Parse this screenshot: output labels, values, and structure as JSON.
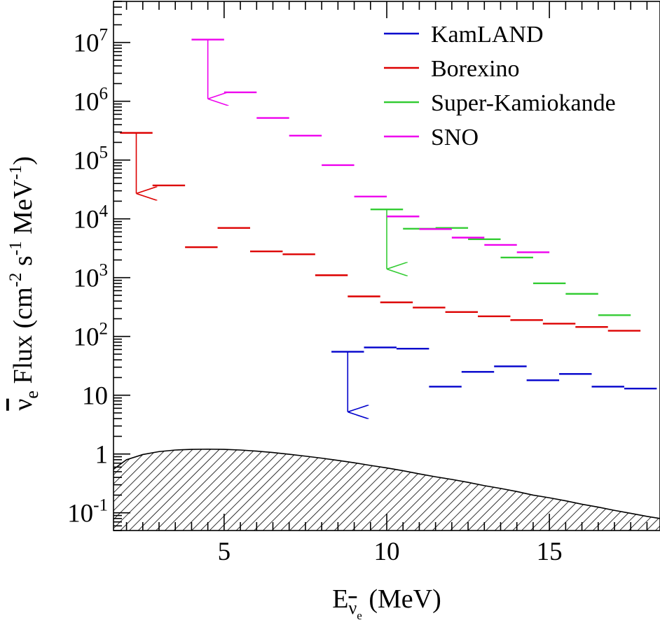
{
  "chart_data": {
    "type": "step",
    "xlabel": {
      "base": "E",
      "sub_nu": "ν",
      "sub_e": "e",
      "unit": "(MeV)"
    },
    "ylabel": {
      "nu": "ν",
      "sub": "e",
      "text1": "Flux (cm",
      "exp1": "-2",
      "text2": " s",
      "exp2": "-1",
      "text3": " MeV",
      "exp3": "-1",
      "close": ")"
    },
    "xlim": [
      1.6,
      18.4
    ],
    "ylim": [
      0.05,
      50000000
    ],
    "yscale": "log",
    "x_ticks": [
      5,
      10,
      15
    ],
    "x_tick_labels": [
      "5",
      "10",
      "15"
    ],
    "y_ticks": [
      {
        "value": 0.1,
        "base": "10",
        "exp": "-1"
      },
      {
        "value": 1,
        "base": "1",
        "exp": ""
      },
      {
        "value": 10,
        "base": "10",
        "exp": ""
      },
      {
        "value": 100,
        "base": "10",
        "exp": "2"
      },
      {
        "value": 1000,
        "base": "10",
        "exp": "3"
      },
      {
        "value": 10000,
        "base": "10",
        "exp": "4"
      },
      {
        "value": 100000,
        "base": "10",
        "exp": "5"
      },
      {
        "value": 1000000,
        "base": "10",
        "exp": "6"
      },
      {
        "value": 10000000,
        "base": "10",
        "exp": "7"
      }
    ],
    "legend": {
      "position": "top-right"
    },
    "series": [
      {
        "name": "KamLAND",
        "color": "#0000cc",
        "bins": [
          [
            8.3,
            9.3,
            55
          ],
          [
            9.3,
            10.3,
            65
          ],
          [
            10.3,
            11.3,
            62
          ],
          [
            11.3,
            12.3,
            14
          ],
          [
            12.3,
            13.3,
            25
          ],
          [
            13.3,
            14.3,
            31
          ],
          [
            14.3,
            15.3,
            18
          ],
          [
            15.3,
            16.3,
            23
          ],
          [
            16.3,
            17.3,
            14
          ],
          [
            17.3,
            18.3,
            13
          ]
        ],
        "upper_limits": [
          [
            8.8,
            55,
            5.2
          ]
        ]
      },
      {
        "name": "Borexino",
        "color": "#dd0000",
        "bins": [
          [
            1.8,
            2.8,
            290000
          ],
          [
            2.8,
            3.8,
            37000
          ],
          [
            3.8,
            4.8,
            3300
          ],
          [
            4.8,
            5.8,
            7000
          ],
          [
            5.8,
            6.8,
            2800
          ],
          [
            6.8,
            7.8,
            2500
          ],
          [
            7.8,
            8.8,
            1100
          ],
          [
            8.8,
            9.8,
            480
          ],
          [
            9.8,
            10.8,
            380
          ],
          [
            10.8,
            11.8,
            310
          ],
          [
            11.8,
            12.8,
            260
          ],
          [
            12.8,
            13.8,
            220
          ],
          [
            13.8,
            14.8,
            190
          ],
          [
            14.8,
            15.8,
            165
          ],
          [
            15.8,
            16.8,
            145
          ],
          [
            16.8,
            17.8,
            125
          ]
        ],
        "upper_limits": [
          [
            2.3,
            290000,
            27000
          ]
        ]
      },
      {
        "name": "Super-Kamiokande",
        "color": "#33cc33",
        "bins": [
          [
            9.5,
            10.5,
            14500
          ],
          [
            10.5,
            11.5,
            6800
          ],
          [
            11.5,
            12.5,
            7000
          ],
          [
            12.5,
            13.5,
            4500
          ],
          [
            13.5,
            14.5,
            2200
          ],
          [
            14.5,
            15.5,
            800
          ],
          [
            15.5,
            16.5,
            530
          ],
          [
            16.5,
            17.5,
            230
          ]
        ],
        "upper_limits": [
          [
            10,
            14500,
            1400
          ]
        ]
      },
      {
        "name": "SNO",
        "color": "#ee00ee",
        "bins": [
          [
            4,
            5,
            11200000
          ],
          [
            5,
            6,
            1420000
          ],
          [
            6,
            7,
            520000
          ],
          [
            7,
            8,
            260000
          ],
          [
            8,
            9,
            82000
          ],
          [
            9,
            10,
            24000
          ],
          [
            10,
            11,
            11000
          ],
          [
            11,
            12,
            6700
          ],
          [
            12,
            13,
            4800
          ],
          [
            13,
            14,
            3600
          ],
          [
            14,
            15,
            2700
          ]
        ],
        "upper_limits": [
          [
            4.5,
            11200000,
            1100000
          ]
        ]
      }
    ],
    "background_curve": {
      "fill": "hatched",
      "x": [
        1.6,
        2,
        2.5,
        3,
        3.5,
        4,
        4.5,
        5,
        5.5,
        6,
        6.5,
        7,
        7.5,
        8,
        8.5,
        9,
        9.5,
        10,
        10.5,
        11,
        11.5,
        12,
        12.5,
        13,
        13.5,
        14,
        14.5,
        15,
        15.5,
        16,
        16.5,
        17,
        17.5,
        18,
        18.4
      ],
      "y": [
        0.55,
        0.8,
        0.98,
        1.1,
        1.17,
        1.2,
        1.21,
        1.2,
        1.17,
        1.12,
        1.06,
        0.99,
        0.92,
        0.85,
        0.78,
        0.71,
        0.64,
        0.58,
        0.52,
        0.46,
        0.41,
        0.37,
        0.33,
        0.29,
        0.26,
        0.23,
        0.2,
        0.18,
        0.16,
        0.14,
        0.125,
        0.11,
        0.098,
        0.087,
        0.08
      ]
    }
  }
}
